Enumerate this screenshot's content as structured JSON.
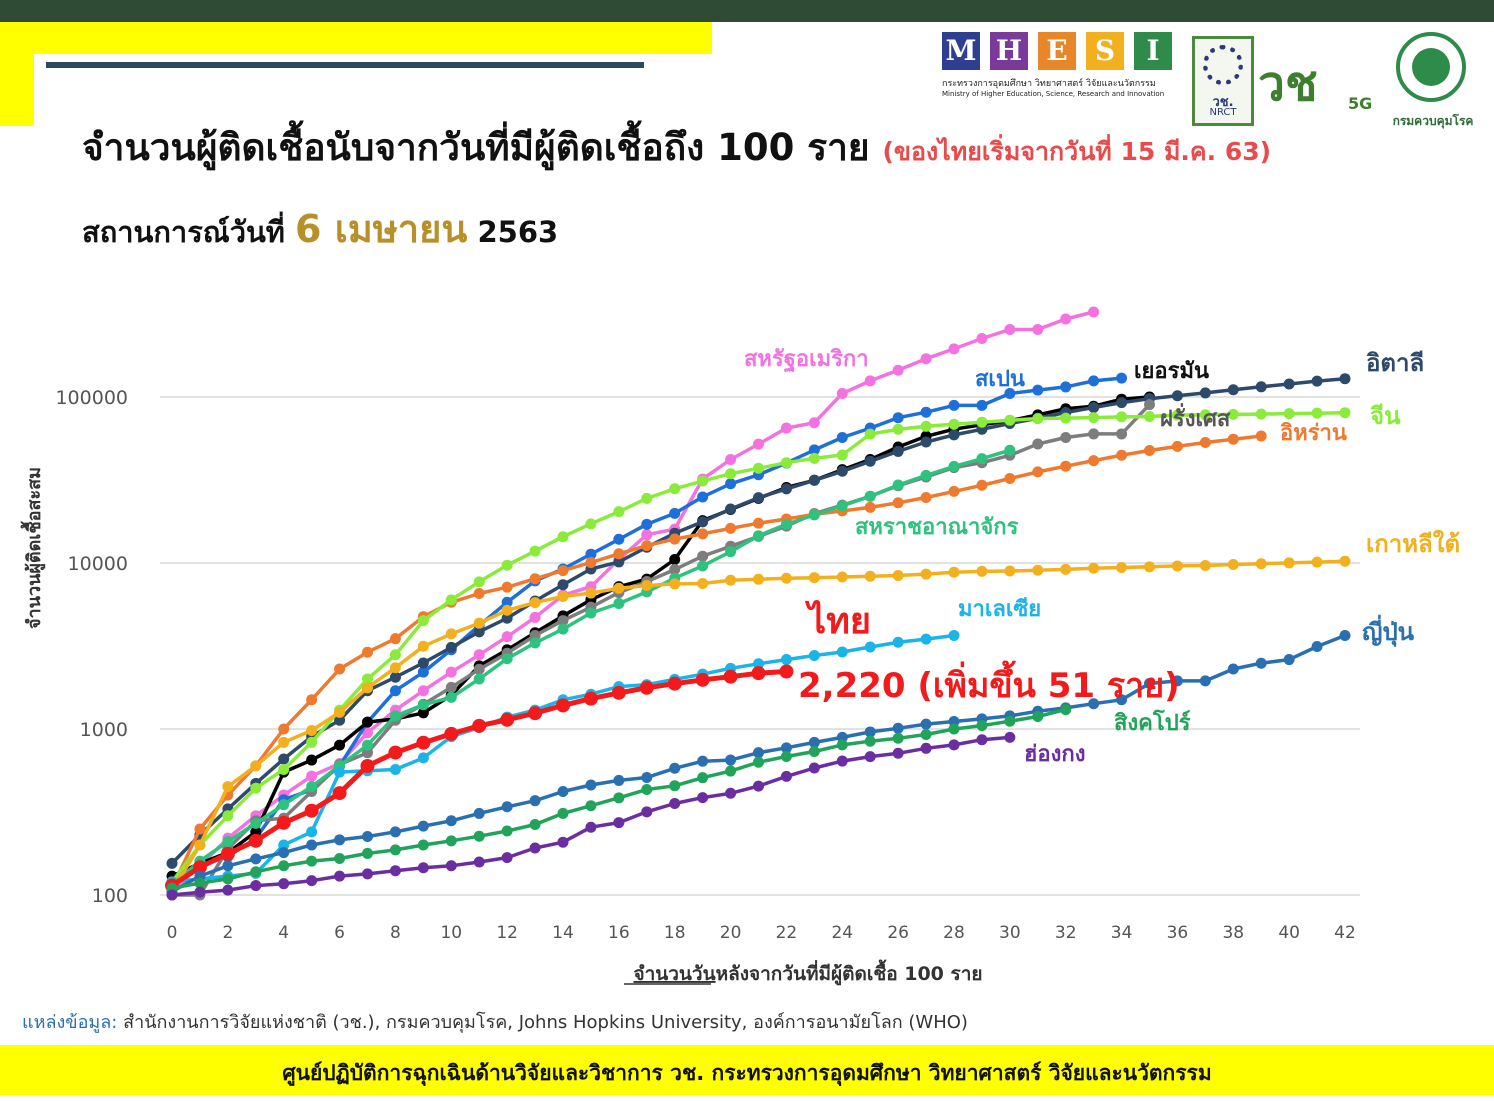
{
  "header": {
    "title": "จำนวนผู้ติดเชื้อนับจากวันที่มีผู้ติดเชื้อถึง 100 ราย",
    "title_note": "(ของไทยเริ่มจากวันที่ 15 มี.ค. 63)",
    "subtitle_prefix": "สถานการณ์วันที่",
    "subtitle_date": "6 เมษายน",
    "subtitle_year": "2563"
  },
  "logos": {
    "mhesi_letters": [
      "M",
      "H",
      "E",
      "S",
      "I"
    ],
    "mhesi_colors": [
      "#2f3f8f",
      "#7a3a9a",
      "#e8872a",
      "#f2b01e",
      "#2e8b4a"
    ],
    "mhesi_thai": "กระทรวงการอุดมศึกษา วิทยาศาสตร์ วิจัยและนวัตกรรม",
    "mhesi_english": "Ministry of Higher Education, Science, Research and Innovation",
    "nrct_thai": "วช.",
    "nrct_english": "NRCT",
    "vc_mark": "วช",
    "vc_5g": "5G",
    "ddc_caption": "กรมควบคุมโรค"
  },
  "chart_data": {
    "type": "line",
    "y_scale": "log",
    "ylim": [
      100,
      400000
    ],
    "xlim": [
      0,
      42
    ],
    "x_ticks": [
      0,
      2,
      4,
      6,
      8,
      10,
      12,
      14,
      16,
      18,
      20,
      22,
      24,
      26,
      28,
      30,
      32,
      34,
      36,
      38,
      40,
      42
    ],
    "y_ticks": [
      "100",
      "1000",
      "10000",
      "100000"
    ],
    "xlabel_underlined": "จำนวนวัน",
    "xlabel_rest": "หลังจากวันที่มีผู้ติดเชื้อ 100 ราย",
    "ylabel": "จำนวนผู้ติดเชื้อสะสม",
    "gridlines": "horizontal",
    "thai_callout": "ไทย",
    "thai_value_callout": "2,220 (เพิ่มขึ้น 51 ราย)",
    "series": [
      {
        "name": "สหรัฐอเมริกา",
        "color": "#f472e0",
        "values": [
          105,
          150,
          220,
          300,
          400,
          520,
          620,
          950,
          1300,
          1700,
          2200,
          2800,
          3600,
          4700,
          6400,
          7200,
          10500,
          14800,
          16000,
          32000,
          42000,
          52000,
          65000,
          70000,
          105000,
          125000,
          145000,
          170000,
          195000,
          225000,
          255000,
          255000,
          295000,
          325000
        ]
      },
      {
        "name": "สเปน",
        "color": "#1f6fd8",
        "values": [
          120,
          150,
          170,
          220,
          375,
          430,
          600,
          1100,
          1700,
          2200,
          3000,
          4200,
          5800,
          7800,
          9200,
          11300,
          13900,
          17100,
          19900,
          25000,
          30000,
          34000,
          40000,
          48000,
          57000,
          65000,
          75000,
          81000,
          89000,
          89000,
          105000,
          110000,
          115000,
          125000,
          130000
        ]
      },
      {
        "name": "เยอรมัน",
        "color": "#000000",
        "values": [
          130,
          155,
          180,
          240,
          550,
          650,
          800,
          1100,
          1150,
          1250,
          1600,
          2400,
          3000,
          3800,
          4800,
          6000,
          7200,
          8000,
          10500,
          18000,
          21000,
          24500,
          28500,
          31500,
          36500,
          42000,
          50000,
          58000,
          64000,
          68000,
          72000,
          78000,
          85000,
          88000,
          97000,
          100000
        ]
      },
      {
        "name": "อิตาลี",
        "color": "#2e4a6a",
        "values": [
          155,
          230,
          330,
          470,
          660,
          900,
          1130,
          1700,
          2050,
          2500,
          3100,
          3850,
          4650,
          5900,
          7400,
          9200,
          10150,
          12450,
          15100,
          17700,
          21150,
          24750,
          27950,
          31500,
          35700,
          41000,
          47000,
          53600,
          59100,
          63900,
          69200,
          74400,
          80600,
          86500,
          92500,
          97700,
          101700,
          105800,
          110600,
          115200,
          119800,
          124600,
          128900
        ]
      },
      {
        "name": "ฝรั่งเศส",
        "color": "#7d7d7d",
        "values": [
          100,
          100,
          190,
          280,
          290,
          420,
          610,
          720,
          1130,
          1410,
          1780,
          2290,
          2860,
          3660,
          4500,
          5420,
          6630,
          7730,
          9130,
          10990,
          12610,
          14460,
          16690,
          19860,
          22300,
          25230,
          29210,
          32960,
          37580,
          40180,
          44550,
          52130,
          56990,
          59910,
          59900,
          90000
        ]
      },
      {
        "name": "อิหร่าน",
        "color": "#ee7a30",
        "values": [
          110,
          250,
          400,
          600,
          1000,
          1500,
          2300,
          2900,
          3500,
          4750,
          5800,
          6550,
          7150,
          8040,
          9000,
          10070,
          11360,
          12730,
          13940,
          14990,
          16170,
          17360,
          18400,
          19640,
          20600,
          21630,
          23050,
          24810,
          27010,
          29400,
          32300,
          35400,
          38300,
          41400,
          44600,
          47600,
          50400,
          53200,
          55700,
          58200
        ]
      },
      {
        "name": "จีน",
        "color": "#8aeb3a",
        "values": [
          120,
          200,
          300,
          440,
          570,
          830,
          1300,
          2000,
          2800,
          4500,
          6000,
          7700,
          9700,
          11800,
          14400,
          17200,
          20400,
          24500,
          28000,
          31200,
          34500,
          37200,
          40200,
          42700,
          44700,
          59800,
          63900,
          66600,
          68500,
          70500,
          72400,
          74200,
          74600,
          75100,
          75900,
          76300,
          77800,
          78200,
          78600,
          78900,
          79400,
          79900,
          80400
        ]
      },
      {
        "name": "สหราชอาณาจักร",
        "color": "#2ec27e",
        "values": [
          115,
          160,
          210,
          270,
          350,
          450,
          600,
          800,
          1200,
          1400,
          1550,
          2000,
          2650,
          3300,
          4000,
          5000,
          5700,
          6700,
          8100,
          9600,
          11700,
          14600,
          17100,
          19500,
          22100,
          25200,
          29500,
          33700,
          38200,
          42500,
          47800
        ]
      },
      {
        "name": "เกาหลีใต้",
        "color": "#f2b01e",
        "values": [
          105,
          200,
          450,
          600,
          830,
          980,
          1260,
          1770,
          2340,
          3150,
          3740,
          4340,
          5190,
          5770,
          6290,
          6590,
          7040,
          7320,
          7480,
          7520,
          7870,
          7980,
          8090,
          8160,
          8240,
          8320,
          8410,
          8570,
          8800,
          8900,
          8950,
          9040,
          9150,
          9300,
          9400,
          9480,
          9600,
          9660,
          9790,
          9900,
          10010,
          10120,
          10240
        ]
      },
      {
        "name": "มาเลเซีย",
        "color": "#1bb4e8",
        "values": [
          120,
          125,
          130,
          135,
          200,
          240,
          550,
          560,
          570,
          670,
          900,
          1020,
          1180,
          1300,
          1500,
          1620,
          1800,
          1850,
          1990,
          2140,
          2320,
          2470,
          2620,
          2770,
          2910,
          3120,
          3330,
          3480,
          3660
        ]
      },
      {
        "name": "ไทย",
        "color": "#f21a1a",
        "values": [
          114,
          147,
          177,
          212,
          272,
          322,
          411,
          599,
          721,
          827,
          934,
          1045,
          1136,
          1245,
          1388,
          1524,
          1651,
          1771,
          1875,
          1978,
          2067,
          2169,
          2220
        ]
      },
      {
        "name": "ญี่ปุ่น",
        "color": "#2a6fb0",
        "values": [
          105,
          130,
          150,
          165,
          180,
          200,
          215,
          225,
          240,
          260,
          280,
          310,
          340,
          370,
          420,
          460,
          490,
          510,
          580,
          640,
          650,
          720,
          770,
          830,
          890,
          960,
          1010,
          1070,
          1110,
          1150,
          1200,
          1280,
          1340,
          1420,
          1500,
          1880,
          1950,
          1950,
          2300,
          2490,
          2620,
          3140,
          3660
        ]
      },
      {
        "name": "สิงคโปร์",
        "color": "#22a35a",
        "values": [
          110,
          118,
          125,
          138,
          150,
          160,
          166,
          178,
          187,
          200,
          212,
          226,
          243,
          266,
          310,
          345,
          385,
          432,
          455,
          509,
          558,
          631,
          683,
          732,
          802,
          844,
          879,
          926,
          1000,
          1049,
          1114,
          1189,
          1309
        ]
      },
      {
        "name": "ฮ่องกง",
        "color": "#6a2ea0",
        "values": [
          100,
          104,
          107,
          114,
          117,
          122,
          130,
          134,
          140,
          146,
          150,
          158,
          168,
          192,
          208,
          256,
          273,
          317,
          356,
          386,
          410,
          453,
          518,
          582,
          641,
          682,
          714,
          765,
          802,
          862,
          890
        ]
      }
    ]
  },
  "labels": {
    "usa": "สหรัฐอเมริกา",
    "spain": "สเปน",
    "germany": "เยอรมัน",
    "italy": "อิตาลี",
    "france": "ฝรั่งเศส",
    "iran": "อิหร่าน",
    "china": "จีน",
    "uk": "สหราชอาณาจักร",
    "korea": "เกาหลีใต้",
    "malaysia": "มาเลเซีย",
    "japan": "ญี่ปุ่น",
    "singapore": "สิงคโปร์",
    "hongkong": "ฮ่องกง"
  },
  "source": {
    "label": "แหล่งข้อมูล:",
    "text": "สำนักงานการวิจัยแห่งชาติ (วช.), กรมควบคุมโรค, Johns Hopkins University, องค์การอนามัยโลก (WHO)"
  },
  "footer": {
    "text": "ศูนย์ปฏิบัติการฉุกเฉินด้านวิจัยและวิชาการ   วช.   กระทรวงการอุดมศึกษา วิทยาศาสตร์ วิจัยและนวัตกรรม"
  }
}
